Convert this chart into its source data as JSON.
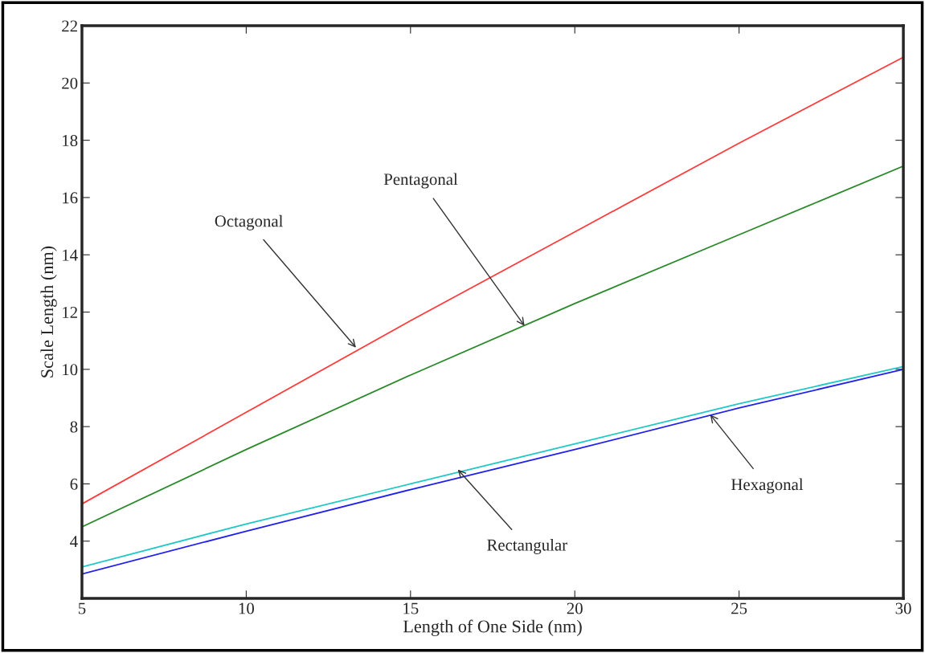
{
  "chart_data": {
    "type": "line",
    "xlabel": "Length of One Side (nm)",
    "ylabel": "Scale Length (nm)",
    "x": [
      5,
      10,
      15,
      20,
      25,
      30
    ],
    "series": [
      {
        "color": "#ff3b3b",
        "values": [
          5.3,
          8.5,
          11.7,
          14.8,
          17.9,
          20.9
        ]
      },
      {
        "color": "#2a8a2a",
        "values": [
          4.5,
          7.2,
          9.8,
          12.3,
          14.7,
          17.1
        ]
      },
      {
        "color": "#20c8c8",
        "values": [
          3.1,
          4.6,
          6.0,
          7.4,
          8.8,
          10.1
        ]
      },
      {
        "color": "#2020ee",
        "values": [
          2.85,
          4.35,
          5.8,
          7.2,
          8.65,
          10.0
        ]
      }
    ],
    "annotations": [
      {
        "text": "Octagonal",
        "x": 13.34,
        "y": 10.76
      },
      {
        "text": "Pentagonal",
        "x": 18.47,
        "y": 11.52
      },
      {
        "text": "Rectangular",
        "x": 16.44,
        "y": 6.5
      },
      {
        "text": "Hexagonal",
        "x": 24.12,
        "y": 8.42
      }
    ],
    "xlim": [
      5,
      30
    ],
    "ylim": [
      2,
      22
    ],
    "xticks": [
      5,
      10,
      15,
      20,
      25,
      30
    ],
    "yticks": [
      4,
      6,
      8,
      10,
      12,
      14,
      16,
      18,
      20,
      22
    ],
    "grid": false,
    "legend": false,
    "marker": "none",
    "line_style": "solid"
  }
}
